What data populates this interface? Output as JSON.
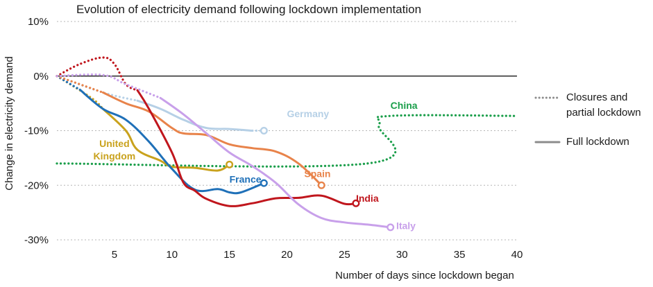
{
  "chart_data": {
    "type": "line",
    "title": "Evolution of electricity demand following lockdown implementation",
    "xlabel": "Number of days since lockdown began",
    "ylabel": "Change in electricity demand",
    "xlim": [
      0,
      40
    ],
    "ylim": [
      -30,
      10
    ],
    "x_ticks": [
      5,
      10,
      15,
      20,
      25,
      30,
      35,
      40
    ],
    "y_ticks": [
      10,
      0,
      -10,
      -20,
      -30
    ],
    "y_tick_labels": [
      "10%",
      "0%",
      "-10%",
      "-20%",
      "-30%"
    ],
    "grid": "horizontal dotted",
    "zero_line": true,
    "legend_position": "right",
    "legend": [
      {
        "label": "Closures and partial lockdown",
        "style": "dotted",
        "color": "#8c8c8c"
      },
      {
        "label": "Full lockdown",
        "style": "solid",
        "color": "#8c8c8c"
      }
    ],
    "series": [
      {
        "name": "China",
        "color": "#1a9e4a",
        "label_pos": [
          29,
          -6
        ],
        "segments": [
          {
            "style": "dotted",
            "points": [
              [
                0,
                -16
              ],
              [
                27,
                -16
              ],
              [
                28,
                -9
              ],
              [
                29,
                -7.3
              ],
              [
                40,
                -7.3
              ]
            ]
          }
        ]
      },
      {
        "name": "Germany",
        "color": "#b6d0e6",
        "end_marker": true,
        "label_pos": [
          20,
          -7.5
        ],
        "segments": [
          {
            "style": "dotted",
            "points": [
              [
                0,
                0
              ],
              [
                4,
                -3
              ],
              [
                7,
                -4.5
              ]
            ]
          },
          {
            "style": "solid",
            "points": [
              [
                7,
                -4.5
              ],
              [
                9,
                -6
              ],
              [
                11,
                -8
              ],
              [
                13,
                -9.5
              ],
              [
                15,
                -9.7
              ],
              [
                17,
                -10
              ]
            ]
          },
          {
            "style": "dotted",
            "points": [
              [
                17,
                -10
              ],
              [
                18,
                -10
              ]
            ]
          }
        ]
      },
      {
        "name": "United Kingdom",
        "color": "#c9a21d",
        "end_marker": true,
        "label_pos": [
          5,
          -13
        ],
        "segments": [
          {
            "style": "dotted",
            "points": [
              [
                0,
                0
              ],
              [
                3,
                -4
              ],
              [
                4,
                -6
              ]
            ]
          },
          {
            "style": "solid",
            "points": [
              [
                4,
                -6
              ],
              [
                6,
                -10
              ],
              [
                7,
                -13.5
              ],
              [
                9,
                -15.5
              ],
              [
                10,
                -16.6
              ],
              [
                12,
                -16.8
              ],
              [
                14,
                -17.3
              ],
              [
                15,
                -16.2
              ]
            ]
          }
        ]
      },
      {
        "name": "France",
        "color": "#1f70b8",
        "end_marker": true,
        "label_pos": [
          15,
          -19.5
        ],
        "segments": [
          {
            "style": "dotted",
            "points": [
              [
                0,
                0
              ],
              [
                2,
                -2.5
              ]
            ]
          },
          {
            "style": "solid",
            "points": [
              [
                2,
                -2.5
              ],
              [
                4,
                -6
              ],
              [
                6,
                -8
              ],
              [
                8,
                -12
              ],
              [
                10,
                -17
              ],
              [
                12,
                -20.8
              ],
              [
                14,
                -20.7
              ],
              [
                15,
                -21.3
              ],
              [
                16,
                -21.3
              ],
              [
                18,
                -19.6
              ]
            ]
          }
        ]
      },
      {
        "name": "Spain",
        "color": "#e8834a",
        "end_marker": true,
        "label_pos": [
          21.5,
          -18.5
        ],
        "segments": [
          {
            "style": "dotted",
            "points": [
              [
                0,
                0
              ],
              [
                4,
                -3
              ]
            ]
          },
          {
            "style": "solid",
            "points": [
              [
                4,
                -3
              ],
              [
                6,
                -5
              ],
              [
                8,
                -6.5
              ],
              [
                10,
                -9.5
              ],
              [
                11,
                -10.5
              ],
              [
                13,
                -10.8
              ],
              [
                15,
                -12.5
              ],
              [
                17,
                -13.2
              ],
              [
                19,
                -13.8
              ],
              [
                21,
                -16
              ],
              [
                23,
                -20
              ]
            ]
          }
        ]
      },
      {
        "name": "India",
        "color": "#c0161d",
        "end_marker": true,
        "label_pos": [
          26,
          -23
        ],
        "segments": [
          {
            "style": "dotted",
            "points": [
              [
                0,
                0
              ],
              [
                2,
                2.2
              ],
              [
                4,
                3.4
              ],
              [
                5,
                2.2
              ],
              [
                6,
                -1.5
              ],
              [
                7,
                -2.6
              ]
            ]
          },
          {
            "style": "solid",
            "points": [
              [
                7,
                -2.6
              ],
              [
                8,
                -6
              ],
              [
                10,
                -14
              ],
              [
                11,
                -19.5
              ],
              [
                12,
                -21
              ],
              [
                13,
                -22.5
              ],
              [
                15,
                -23.8
              ],
              [
                17,
                -23.3
              ],
              [
                19,
                -22.4
              ],
              [
                21,
                -22.3
              ],
              [
                23,
                -21.9
              ],
              [
                25,
                -23.4
              ],
              [
                26,
                -23.3
              ]
            ]
          }
        ]
      },
      {
        "name": "Italy",
        "color": "#c8a0ea",
        "end_marker": true,
        "label_pos": [
          29.5,
          -28
        ],
        "segments": [
          {
            "style": "dotted",
            "points": [
              [
                0,
                0
              ],
              [
                4,
                0.2
              ],
              [
                6,
                -1.5
              ],
              [
                9,
                -4
              ]
            ]
          },
          {
            "style": "solid",
            "points": [
              [
                9,
                -4
              ],
              [
                11,
                -7
              ],
              [
                13,
                -10.5
              ],
              [
                15,
                -14
              ],
              [
                17,
                -16.5
              ],
              [
                19,
                -19.5
              ],
              [
                21,
                -23.5
              ],
              [
                23,
                -26
              ],
              [
                25,
                -26.8
              ],
              [
                27,
                -27.2
              ],
              [
                29,
                -27.7
              ]
            ]
          }
        ]
      }
    ]
  }
}
